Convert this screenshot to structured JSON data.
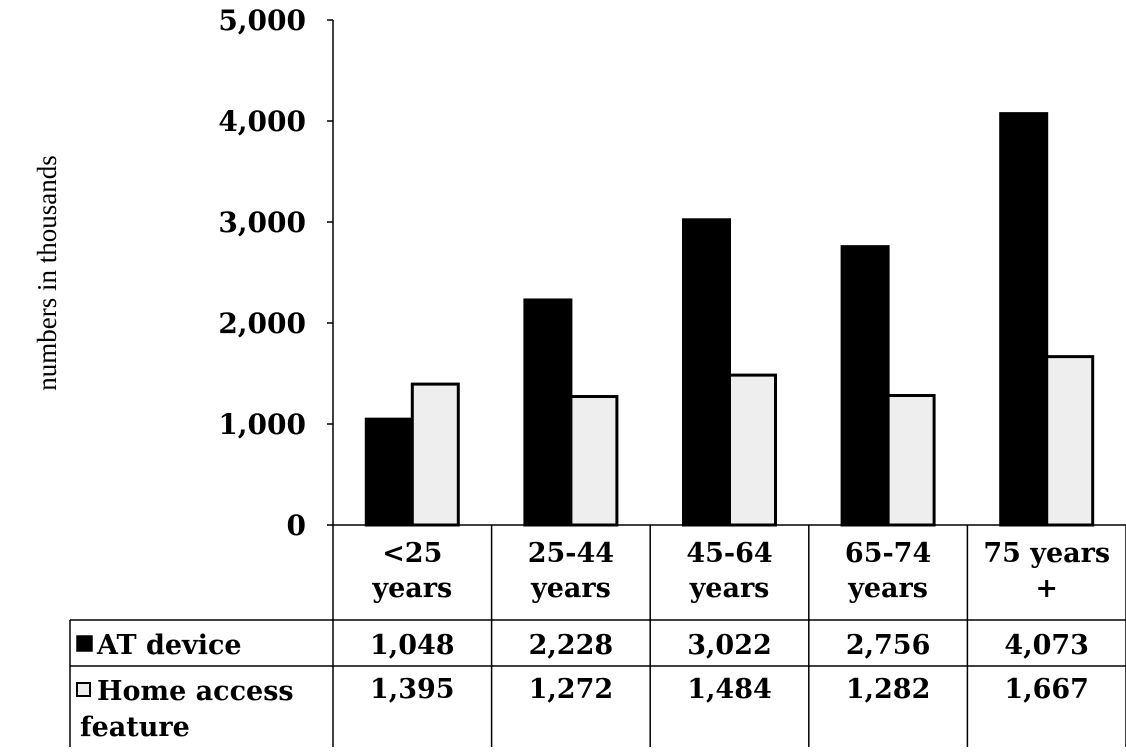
{
  "chart_data": {
    "type": "bar",
    "title": "",
    "ylabel": "numbers in thousands",
    "xlabel": "",
    "ylim": [
      0,
      5000
    ],
    "yticks": [
      {
        "value": 0,
        "label": "0"
      },
      {
        "value": 1000,
        "label": "1,000"
      },
      {
        "value": 2000,
        "label": "2,000"
      },
      {
        "value": 3000,
        "label": "3,000"
      },
      {
        "value": 4000,
        "label": "4,000"
      },
      {
        "value": 5000,
        "label": "5,000"
      }
    ],
    "categories": [
      [
        "<25",
        "years"
      ],
      [
        "25-44",
        "years"
      ],
      [
        "45-64",
        "years"
      ],
      [
        "65-74",
        "years"
      ],
      [
        "75 years",
        "+"
      ]
    ],
    "series": [
      {
        "name": "AT device",
        "color": "#000000",
        "values": [
          1048,
          2228,
          3022,
          2756,
          4073
        ],
        "value_labels": [
          "1,048",
          "2,228",
          "3,022",
          "2,756",
          "4,073"
        ]
      },
      {
        "name_lines": [
          "Home access",
          "feature"
        ],
        "name": "Home access feature",
        "color": "#eeeeee",
        "values": [
          1395,
          1272,
          1484,
          1282,
          1667
        ],
        "value_labels": [
          "1,395",
          "1,272",
          "1,484",
          "1,282",
          "1,667"
        ]
      }
    ],
    "grid": false,
    "legend": "data table"
  }
}
